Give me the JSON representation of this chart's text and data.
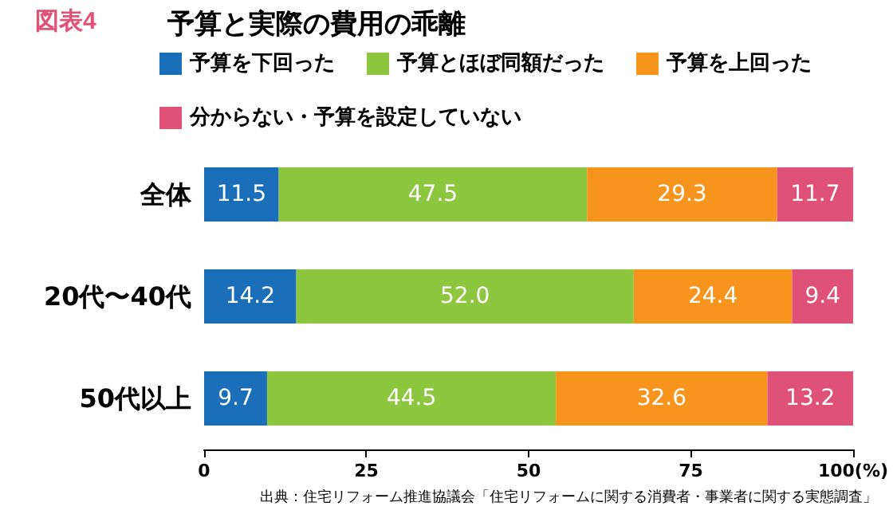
{
  "chart_data": {
    "type": "bar",
    "orientation": "horizontal",
    "stacked": true,
    "title": "予算と実際の費用の乖離",
    "categories": [
      "全体",
      "20代〜40代",
      "50代以上"
    ],
    "series": [
      {
        "name": "予算を下回った",
        "color": "#1a6fb8",
        "values": [
          11.5,
          14.2,
          9.7
        ]
      },
      {
        "name": "予算とほぼ同額だった",
        "color": "#8dc63f",
        "values": [
          47.5,
          52.0,
          44.5
        ]
      },
      {
        "name": "予算を上回った",
        "color": "#f7941d",
        "values": [
          29.3,
          24.4,
          32.6
        ]
      },
      {
        "name": "分からない・予算を設定していない",
        "color": "#e05177",
        "values": [
          11.7,
          9.4,
          13.2
        ]
      }
    ],
    "value_labels": [
      [
        "11.5",
        "14.2",
        "9.7"
      ],
      [
        "47.5",
        "52.0",
        "44.5"
      ],
      [
        "29.3",
        "24.4",
        "32.6"
      ],
      [
        "11.7",
        "9.4",
        "13.2"
      ]
    ],
    "xlim": [
      0,
      100
    ],
    "xticks": [
      0,
      25,
      50,
      75,
      {
        "value": 100,
        "label": "100(%)"
      }
    ],
    "grid": false,
    "legend": "top",
    "annotations": [
      "図表4",
      "出典：住宅リフォーム推進協議会「住宅リフォームに関する消費者・事業者に関する実態調査」"
    ]
  }
}
